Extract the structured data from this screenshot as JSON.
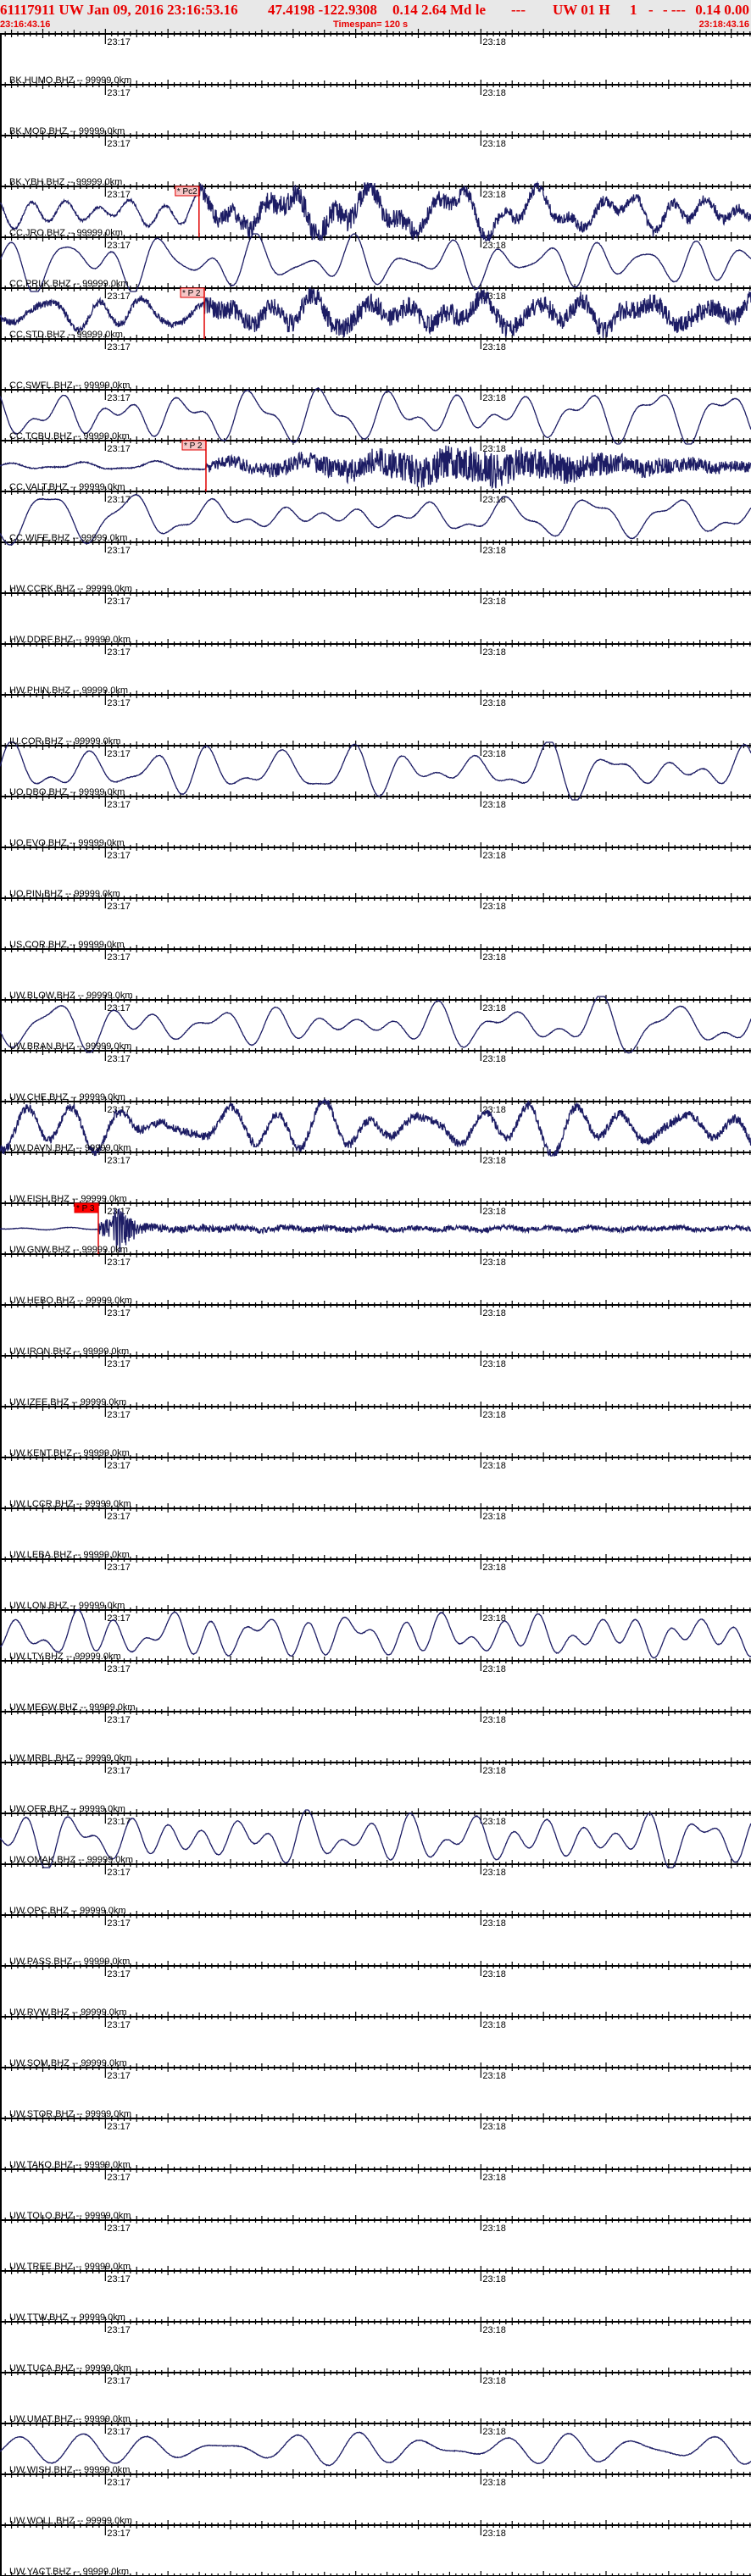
{
  "header": {
    "event": "61117911 UW Jan 09, 2016 23:16:53.16",
    "location": "47.4198 -122.9308",
    "magnitude": "0.14 2.64 Md le",
    "dash1": "---",
    "source": "UW 01 H",
    "one": "1",
    "dash2": "-",
    "dash3": "- ---",
    "tail": "0.14 0.00",
    "start_time": "23:16:43.16",
    "timespan": "Timespan= 120 s",
    "end_time": "23:18:43.16"
  },
  "time_axis": {
    "start": "23:16:43.16",
    "span_seconds": 120,
    "major_labels": [
      "23:17",
      "23:18"
    ]
  },
  "colors": {
    "header_text": "#e80000",
    "header_bg": "#e8e8e8",
    "trace": "#1c1c64",
    "pick": "#e00000",
    "pick_fill": "#f6c6c6",
    "pick_fill_active": "#ff0000"
  },
  "channels": [
    {
      "label": "BK.HUMO.BHZ -- 99999.0km"
    },
    {
      "label": "BK.MOD.BHZ -- 99999.0km"
    },
    {
      "label": "BK.YBH.BHZ -- 99999.0km",
      "signal": "noisy-after-pick",
      "pick": {
        "label": "* Pc2",
        "time": "23:17:14.96",
        "active": false
      }
    },
    {
      "label": "CC.JRO.BHZ -- 99999.0km",
      "signal": "smooth"
    },
    {
      "label": "CC.PRLK.BHZ -- 99999.0km",
      "signal": "noisy",
      "pick": {
        "label": "* P 2",
        "time": "23:17:15.80",
        "active": false
      }
    },
    {
      "label": "CC.STD.BHZ -- 99999.0km"
    },
    {
      "label": "CC.SWFL.BHZ -- 99999.0km",
      "signal": "smooth"
    },
    {
      "label": "CC.TCBU.BHZ -- 99999.0km",
      "signal": "quiet-then-noisy",
      "pick": {
        "label": "* P 2",
        "time": "23:17:16.07",
        "active": false
      }
    },
    {
      "label": "CC.VALT.BHZ -- 99999.0km",
      "signal": "smooth"
    },
    {
      "label": "CC.WIFE.BHZ -- 99999.0km"
    },
    {
      "label": "HW.CCRK.BHZ -- 99999.0km"
    },
    {
      "label": "HW.DDRF.BHZ -- 99999.0km"
    },
    {
      "label": "HW.PHIN.BHZ -- 99999.0km"
    },
    {
      "label": "IU.COR.BHZ -- 99999.0km",
      "signal": "smooth"
    },
    {
      "label": "UO.DBO.BHZ -- 99999.0km"
    },
    {
      "label": "UO.EVO.BHZ -- 99999.0km"
    },
    {
      "label": "UO.PIN.BHZ -- 99999.0km"
    },
    {
      "label": "US.COR.BHZ -- 99999.0km"
    },
    {
      "label": "UW.BLOW.BHZ -- 99999.0km",
      "signal": "smooth"
    },
    {
      "label": "UW.BRAN.BHZ -- 99999.0km"
    },
    {
      "label": "UW.CHE.BHZ -- 99999.0km",
      "signal": "noisy-smooth"
    },
    {
      "label": "UW.DAVN.BHZ -- 99999.0km"
    },
    {
      "label": "UW.FISH.BHZ -- 99999.0km",
      "signal": "quiet-then-burst",
      "pick": {
        "label": "* P 3",
        "time": "23:16:58.87",
        "active": true
      }
    },
    {
      "label": "UW.GNW.BHZ -- 99999.0km"
    },
    {
      "label": "UW.HEBO.BHZ -- 99999.0km"
    },
    {
      "label": "UW.IRON.BHZ -- 99999.0km"
    },
    {
      "label": "UW.IZEE.BHZ -- 99999.0km"
    },
    {
      "label": "UW.KENT.BHZ -- 99999.0km"
    },
    {
      "label": "UW.LCCR.BHZ -- 99999.0km"
    },
    {
      "label": "UW.LEBA.BHZ -- 99999.0km"
    },
    {
      "label": "UW.LON.BHZ -- 99999.0km",
      "signal": "smooth"
    },
    {
      "label": "UW.LTY.BHZ -- 99999.0km"
    },
    {
      "label": "UW.MEGW.BHZ -- 99999.0km"
    },
    {
      "label": "UW.MRBL.BHZ -- 99999.0km"
    },
    {
      "label": "UW.OFR.BHZ -- 99999.0km",
      "signal": "smooth"
    },
    {
      "label": "UW.OMAK.BHZ -- 99999.0km"
    },
    {
      "label": "UW.OPC.BHZ -- 99999.0km"
    },
    {
      "label": "UW.PASS.BHZ -- 99999.0km"
    },
    {
      "label": "UW.RVW.BHZ -- 99999.0km"
    },
    {
      "label": "UW.SQM.BHZ -- 99999.0km"
    },
    {
      "label": "UW.STOR.BHZ -- 99999.0km"
    },
    {
      "label": "UW.TAKO.BHZ -- 99999.0km"
    },
    {
      "label": "UW.TOLO.BHZ -- 99999.0km"
    },
    {
      "label": "UW.TREE.BHZ -- 99999.0km"
    },
    {
      "label": "UW.TTW.BHZ -- 99999.0km"
    },
    {
      "label": "UW.TUCA.BHZ -- 99999.0km"
    },
    {
      "label": "UW.UMAT.BHZ -- 99999.0km",
      "signal": "smooth"
    },
    {
      "label": "UW.WISH.BHZ -- 99999.0km"
    },
    {
      "label": "UW.WOLL.BHZ -- 99999.0km"
    },
    {
      "label": "UW.YACT.BHZ -- 99999.0km"
    }
  ]
}
